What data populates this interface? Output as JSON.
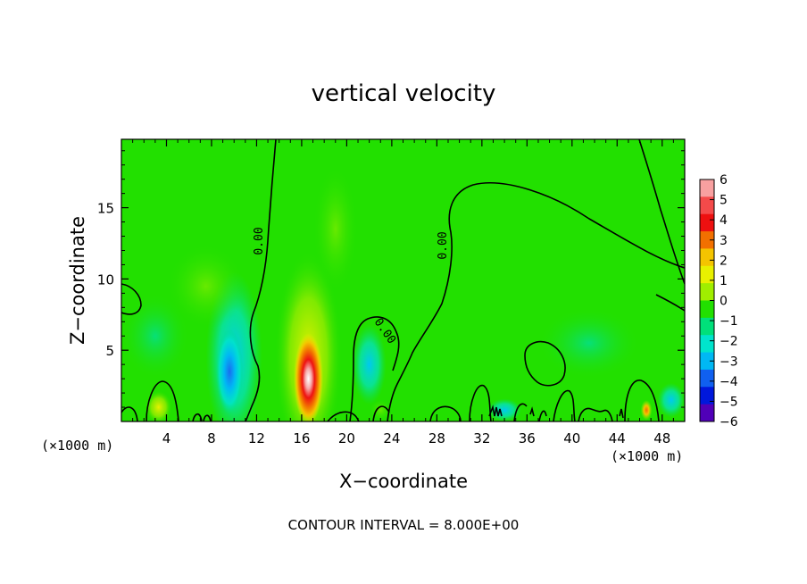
{
  "chart_data": {
    "type": "heatmap",
    "title": "vertical velocity",
    "xlabel": "X−coordinate",
    "ylabel": "Z−coordinate",
    "x_unit_label": "(×1000 m)",
    "x_range": [
      0,
      50
    ],
    "y_range": [
      0,
      19.8
    ],
    "x_ticks": [
      4,
      8,
      12,
      16,
      20,
      24,
      28,
      32,
      36,
      40,
      44,
      48
    ],
    "y_ticks": [
      5,
      10,
      15
    ],
    "contour_interval_text": "CONTOUR INTERVAL =  8.000E+00",
    "contour_labels": [
      "0.00",
      "0.00",
      "0.00"
    ],
    "background_value": 0,
    "colorbar": {
      "ticks": [
        "6",
        "5",
        "4",
        "3",
        "2",
        "1",
        "0",
        "−1",
        "−2",
        "−3",
        "−4",
        "−5",
        "−6"
      ],
      "colors": [
        "#f8a0a0",
        "#f44a4a",
        "#ee1010",
        "#f27000",
        "#f4c400",
        "#e8f000",
        "#a0ee00",
        "#22e000",
        "#00e07a",
        "#00e4cc",
        "#00b8f4",
        "#1060f0",
        "#0018dc",
        "#5000b8"
      ]
    },
    "features": [
      {
        "name": "updraft-core",
        "x": 16.6,
        "z": 3.0,
        "rx": 1.3,
        "rz": 3.2,
        "value": 6
      },
      {
        "name": "updraft-halo",
        "x": 16.6,
        "z": 4.5,
        "rx": 3.0,
        "rz": 7.5,
        "value": 1
      },
      {
        "name": "downdraft-left",
        "x": 9.6,
        "z": 3.5,
        "rx": 1.2,
        "rz": 3.0,
        "value": -3
      },
      {
        "name": "downdraft-left-halo",
        "x": 10.0,
        "z": 4.5,
        "rx": 2.5,
        "rz": 6.0,
        "value": -1
      },
      {
        "name": "downdraft-right",
        "x": 22.0,
        "z": 4.0,
        "rx": 1.5,
        "rz": 2.8,
        "value": -1
      },
      {
        "name": "weak-up-left",
        "x": 7.5,
        "z": 9.5,
        "rx": 3.5,
        "rz": 3.0,
        "value": 0.5
      },
      {
        "name": "weak-down-left",
        "x": 3.0,
        "z": 6.0,
        "rx": 3.0,
        "rz": 3.0,
        "value": -0.6
      },
      {
        "name": "weak-up-tail",
        "x": 19.0,
        "z": 13.5,
        "rx": 2.0,
        "rz": 4.5,
        "value": 0.5
      },
      {
        "name": "weak-down-right",
        "x": 41.5,
        "z": 5.5,
        "rx": 4.5,
        "rz": 2.5,
        "value": -0.7
      },
      {
        "name": "surface-up-46",
        "x": 46.6,
        "z": 0.8,
        "rx": 0.5,
        "rz": 0.7,
        "value": 3
      },
      {
        "name": "surface-up-3",
        "x": 3.3,
        "z": 1.0,
        "rx": 1.2,
        "rz": 1.2,
        "value": 1
      },
      {
        "name": "surface-up-23",
        "x": 23.0,
        "z": 0.8,
        "rx": 1.0,
        "rz": 0.8,
        "value": 0.8
      },
      {
        "name": "surface-down-49",
        "x": 48.8,
        "z": 1.5,
        "rx": 1.2,
        "rz": 1.2,
        "value": -1
      },
      {
        "name": "surface-down-34",
        "x": 34.0,
        "z": 0.8,
        "rx": 1.5,
        "rz": 0.8,
        "value": -1
      }
    ]
  }
}
